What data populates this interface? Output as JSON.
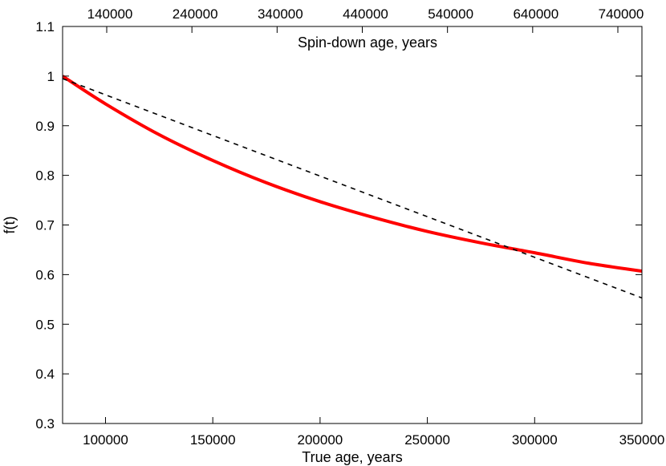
{
  "chart_data": {
    "type": "line",
    "xlabel": "True age, years",
    "x2label": "Spin-down age, years",
    "ylabel": "f(t)",
    "xlim": [
      80000,
      350000
    ],
    "ylim": [
      0.3,
      1.1
    ],
    "x2ticks": [
      "140000",
      "240000",
      "340000",
      "440000",
      "540000",
      "640000",
      "740000"
    ],
    "xticks": [
      "100000",
      "150000",
      "200000",
      "250000",
      "300000",
      "350000"
    ],
    "yticks": [
      "0.3",
      "0.4",
      "0.5",
      "0.6",
      "0.7",
      "0.8",
      "0.9",
      "1",
      "1.1"
    ],
    "grid": false,
    "series": [
      {
        "style": "solid",
        "color": "#ff0000",
        "x": [
          80000,
          100000,
          125000,
          150000,
          175000,
          200000,
          225000,
          250000,
          275000,
          300000,
          325000,
          350000
        ],
        "y": [
          1.0,
          0.944,
          0.882,
          0.83,
          0.785,
          0.747,
          0.715,
          0.687,
          0.664,
          0.644,
          0.623,
          0.607
        ]
      },
      {
        "style": "dashed",
        "color": "#000000",
        "x": [
          80000,
          350000
        ],
        "y": [
          0.995,
          0.553
        ]
      }
    ]
  }
}
